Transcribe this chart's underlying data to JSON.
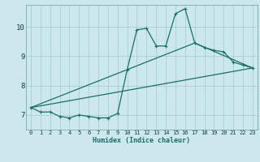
{
  "xlabel": "Humidex (Indice chaleur)",
  "bg_color": "#cce8ec",
  "grid_color": "#aacdd4",
  "line_color": "#1a6e6a",
  "xlim": [
    -0.5,
    23.5
  ],
  "ylim": [
    6.5,
    10.75
  ],
  "yticks": [
    7,
    8,
    9,
    10
  ],
  "xticks": [
    0,
    1,
    2,
    3,
    4,
    5,
    6,
    7,
    8,
    9,
    10,
    11,
    12,
    13,
    14,
    15,
    16,
    17,
    18,
    19,
    20,
    21,
    22,
    23
  ],
  "line1_x": [
    0,
    1,
    2,
    3,
    4,
    5,
    6,
    7,
    8,
    9,
    10,
    11,
    12,
    13,
    14,
    15,
    16,
    17,
    18,
    19,
    20,
    21,
    22,
    23
  ],
  "line1_y": [
    7.25,
    7.1,
    7.1,
    6.95,
    6.9,
    7.0,
    6.95,
    6.9,
    6.9,
    7.05,
    8.55,
    9.9,
    9.95,
    9.35,
    9.35,
    10.45,
    10.62,
    9.45,
    9.3,
    9.2,
    9.15,
    8.8,
    8.7,
    8.6
  ],
  "line2_x": [
    0,
    23
  ],
  "line2_y": [
    7.25,
    8.6
  ],
  "line3_x": [
    0,
    17,
    23
  ],
  "line3_y": [
    7.25,
    9.45,
    8.6
  ],
  "xlabel_fontsize": 6.0,
  "tick_fontsize_x": 5.0,
  "tick_fontsize_y": 6.5
}
